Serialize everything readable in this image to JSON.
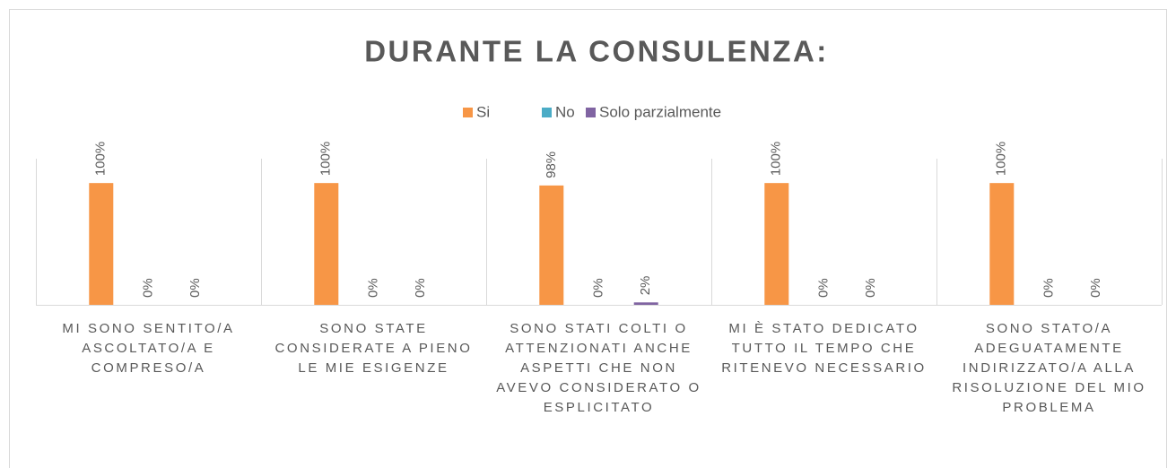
{
  "chart_data": {
    "type": "bar",
    "title": "DURANTE LA CONSULENZA:",
    "categories": [
      "MI SONO SENTITO/A ASCOLTATO/A E COMPRESO/A",
      "SONO STATE CONSIDERATE A PIENO LE MIE ESIGENZE",
      "SONO STATI COLTI O ATTENZIONATI ANCHE ASPETTI CHE NON AVEVO CONSIDERATO O ESPLICITATO",
      "MI È STATO DEDICATO TUTTO IL TEMPO CHE RITENEVO NECESSARIO",
      "SONO STATO/A ADEGUATAMENTE INDIRIZZATO/A ALLA RISOLUZIONE DEL MIO PROBLEMA"
    ],
    "series": [
      {
        "name": "Si",
        "color": "#f79646",
        "values": [
          100,
          100,
          98,
          100,
          100
        ],
        "value_labels": [
          "100%",
          "100%",
          "98%",
          "100%",
          "100%"
        ]
      },
      {
        "name": "No",
        "color": "#4bacc6",
        "values": [
          0,
          0,
          0,
          0,
          0
        ],
        "value_labels": [
          "0%",
          "0%",
          "0%",
          "0%",
          "0%"
        ]
      },
      {
        "name": "Solo parzialmente",
        "color": "#8064a2",
        "values": [
          0,
          0,
          2,
          0,
          0
        ],
        "value_labels": [
          "0%",
          "0%",
          "2%",
          "0%",
          "0%"
        ]
      }
    ],
    "ylim": [
      0,
      120
    ],
    "legend": "top"
  }
}
